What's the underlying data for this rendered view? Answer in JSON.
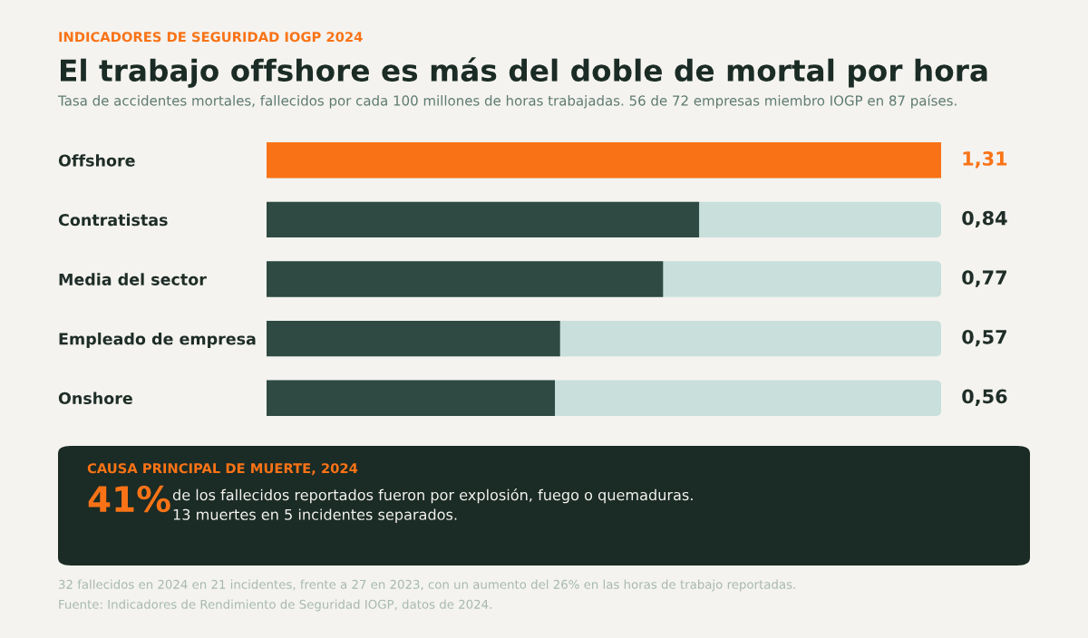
{
  "chart_data": {
    "type": "bar",
    "orientation": "horizontal",
    "title": "El trabajo offshore es más del doble de mortal por hora",
    "subtitle": "Tasa de accidentes mortales, fallecidos por cada 100 millones de horas trabajadas. 56 de 72 empresas miembro IOGP en 87 países.",
    "categories": [
      "Offshore",
      "Contratistas",
      "Media del sector",
      "Empleado de empresa",
      "Onshore"
    ],
    "values": [
      1.31,
      0.84,
      0.77,
      0.57,
      0.56
    ],
    "colors": [
      "#f97316",
      "#2e4a42",
      "#2e4a42",
      "#2e4a42",
      "#2e4a42"
    ],
    "value_labels": [
      "1,31",
      "0,84",
      "0,77",
      "0,57",
      "0,56"
    ],
    "xlim": [
      0,
      1.31
    ],
    "tick_labels": "y",
    "grid": false,
    "legend": false,
    "annotations": [
      "INDICADORES DE SEGURIDAD IOGP 2024",
      "CAUSA PRINCIPAL DE MUERTE, 2024",
      "41%",
      "de los fallecidos reportados fueron por explosión, fuego o quemaduras.\n13 muertes en 5 incidentes separados.",
      "32 fallecidos en 2024 en 21 incidentes, frente a 27 en 2023, con un aumento del 26% en las horas de trabajo reportadas.",
      "Fuente: Indicadores de Rendimiento de Seguridad IOGP, datos de 2024."
    ]
  }
}
